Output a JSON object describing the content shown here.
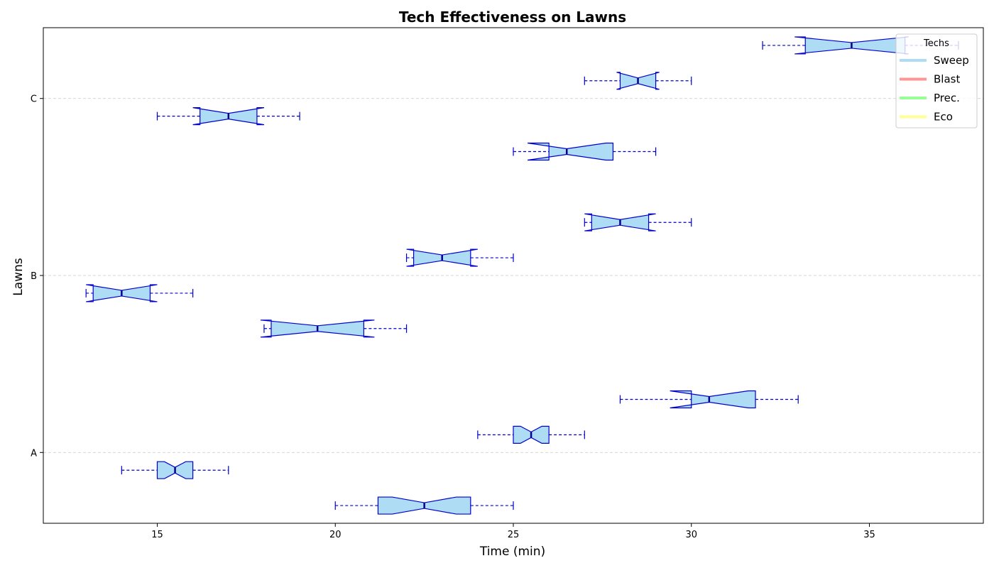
{
  "chart_data": {
    "type": "boxplot",
    "orientation": "horizontal",
    "notched": true,
    "title": "Tech Effectiveness on Lawns",
    "xlabel": "Time (min)",
    "ylabel": "Lawns",
    "xlim": [
      11.8,
      38.2
    ],
    "ylim": [
      -0.4,
      2.4
    ],
    "x_ticks": [
      15,
      20,
      25,
      30,
      35
    ],
    "y_ticks": [
      {
        "value": 0,
        "label": "A"
      },
      {
        "value": 1,
        "label": "B"
      },
      {
        "value": 2,
        "label": "C"
      }
    ],
    "grid": "y-dashed",
    "box_fill": "#aedcf5",
    "box_edge": "#0000cd",
    "legend": {
      "title": "Techs",
      "placement": "top-right",
      "entries": [
        {
          "name": "Sweep",
          "color": "#aedcf5"
        },
        {
          "name": "Blast",
          "color": "#ff9696"
        },
        {
          "name": "Prec.",
          "color": "#96ff96"
        },
        {
          "name": "Eco",
          "color": "#ffff96"
        }
      ]
    },
    "boxes": [
      {
        "lawn": "A",
        "position": -0.3,
        "min": 20,
        "q1": 21.2,
        "median": 22.5,
        "q3": 23.8,
        "max": 25,
        "notch_low": 21.6,
        "notch_high": 23.4
      },
      {
        "lawn": "A",
        "position": -0.1,
        "min": 14,
        "q1": 15.0,
        "median": 15.5,
        "q3": 16.0,
        "max": 17,
        "notch_low": 15.2,
        "notch_high": 15.8
      },
      {
        "lawn": "A",
        "position": 0.1,
        "min": 24,
        "q1": 25.0,
        "median": 25.5,
        "q3": 26.0,
        "max": 27,
        "notch_low": 25.2,
        "notch_high": 25.8
      },
      {
        "lawn": "A",
        "position": 0.3,
        "min": 28,
        "q1": 30.0,
        "median": 30.5,
        "q3": 31.8,
        "max": 33,
        "notch_low": 29.4,
        "notch_high": 31.6
      },
      {
        "lawn": "B",
        "position": 0.7,
        "min": 18,
        "q1": 18.2,
        "median": 19.5,
        "q3": 20.8,
        "max": 22,
        "notch_low": 17.9,
        "notch_high": 21.1
      },
      {
        "lawn": "B",
        "position": 0.9,
        "min": 13,
        "q1": 13.2,
        "median": 14.0,
        "q3": 14.8,
        "max": 16,
        "notch_low": 13.0,
        "notch_high": 15.0
      },
      {
        "lawn": "B",
        "position": 1.1,
        "min": 22,
        "q1": 22.2,
        "median": 23.0,
        "q3": 23.8,
        "max": 25,
        "notch_low": 22.0,
        "notch_high": 24.0
      },
      {
        "lawn": "B",
        "position": 1.3,
        "min": 27,
        "q1": 27.2,
        "median": 28.0,
        "q3": 28.8,
        "max": 30,
        "notch_low": 27.0,
        "notch_high": 29.0
      },
      {
        "lawn": "C",
        "position": 1.7,
        "min": 25,
        "q1": 26.0,
        "median": 26.5,
        "q3": 27.8,
        "max": 29,
        "notch_low": 25.4,
        "notch_high": 27.6
      },
      {
        "lawn": "C",
        "position": 1.9,
        "min": 15,
        "q1": 16.2,
        "median": 17.0,
        "q3": 17.8,
        "max": 19,
        "notch_low": 16.0,
        "notch_high": 18.0
      },
      {
        "lawn": "C",
        "position": 2.1,
        "min": 27,
        "q1": 28.0,
        "median": 28.5,
        "q3": 29.0,
        "max": 30,
        "notch_low": 27.9,
        "notch_high": 29.1
      },
      {
        "lawn": "C",
        "position": 2.3,
        "min": 32,
        "q1": 33.2,
        "median": 34.5,
        "q3": 36.0,
        "max": 37.5,
        "notch_low": 32.9,
        "notch_high": 36.1
      }
    ]
  }
}
